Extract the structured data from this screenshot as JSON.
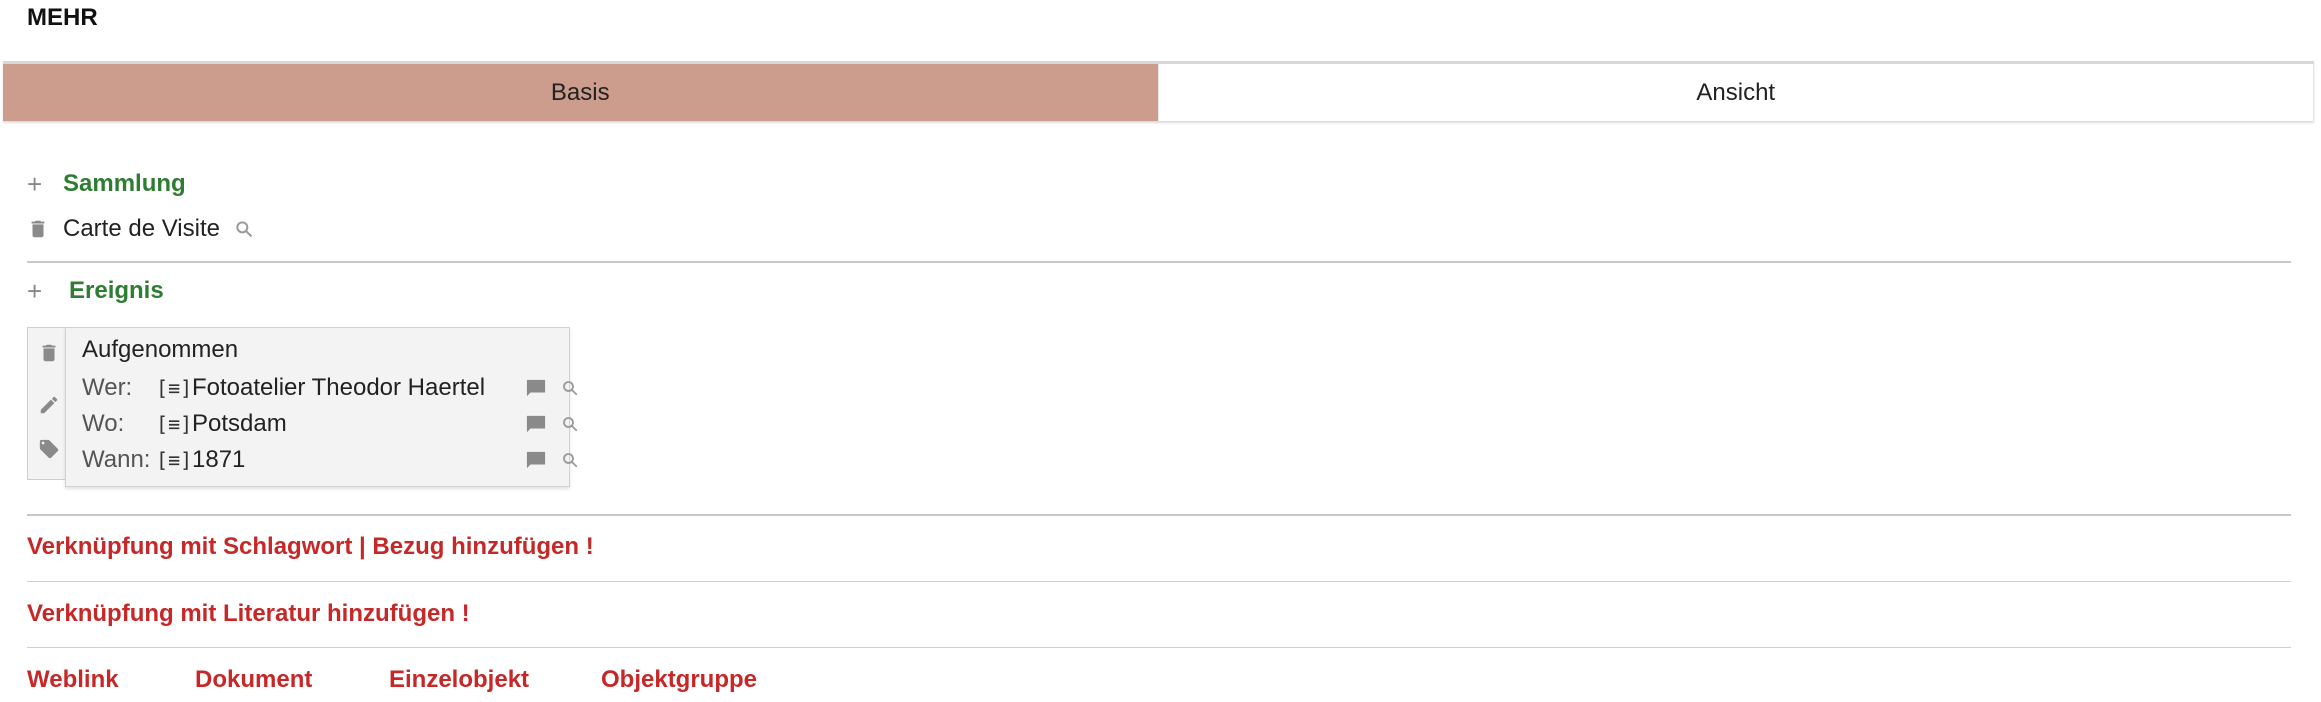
{
  "header": {
    "title": "MEHR"
  },
  "tabs": [
    {
      "label": "Basis",
      "active": true
    },
    {
      "label": "Ansicht",
      "active": false
    }
  ],
  "colors": {
    "active_tab": "#cc9c8c",
    "section_title": "#2e7d32",
    "link": "#c62828"
  },
  "sammlung": {
    "title": "Sammlung",
    "items": [
      {
        "label": "Carte de Visite"
      }
    ]
  },
  "ereignis": {
    "title": "Ereignis",
    "event": {
      "title": "Aufgenommen",
      "rows": [
        {
          "label": "Wer:",
          "bracket": "[≡]",
          "value": "Fotoatelier Theodor Haertel"
        },
        {
          "label": "Wo:",
          "bracket": "[≡]",
          "value": "Potsdam"
        },
        {
          "label": "Wann:",
          "bracket": "[≡]",
          "value": "1871"
        }
      ]
    }
  },
  "links": {
    "schlagwort": "Verknüpfung mit Schlagwort | Bezug hinzufügen !",
    "literatur": "Verknüpfung mit Literatur hinzufügen !",
    "bottom": [
      "Weblink",
      "Dokument",
      "Einzelobjekt",
      "Objektgruppe"
    ]
  },
  "icons": [
    "plus-icon",
    "trash-icon",
    "search-icon",
    "edit-icon",
    "tag-icon",
    "comment-icon"
  ]
}
